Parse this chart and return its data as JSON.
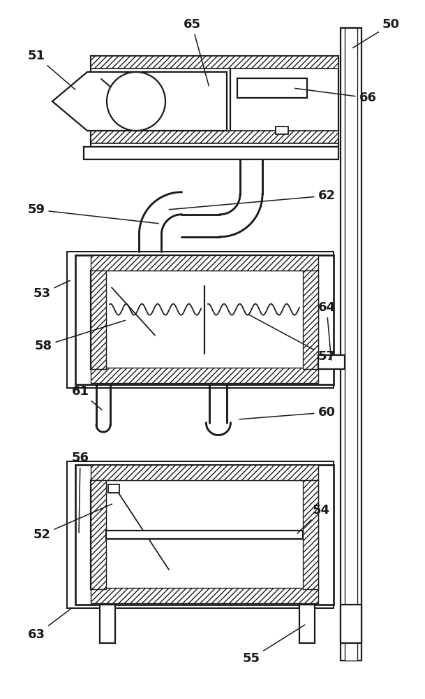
{
  "bg_color": "#ffffff",
  "lc": "#1a1a1a",
  "lw": 1.6,
  "fig_w": 6.09,
  "fig_h": 10.0,
  "dpi": 100
}
